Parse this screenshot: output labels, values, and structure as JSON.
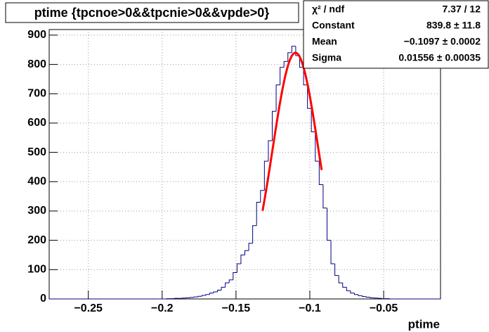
{
  "chart_data": {
    "type": "histogram",
    "title": "ptime {tpcnoe>0&&tpcnie>0&&vpde>0}",
    "x_label": "ptime",
    "color": "#000080",
    "fit_color": "#ff0000",
    "xlim": [
      -0.2765,
      -0.0115
    ],
    "ylim": [
      0,
      919
    ],
    "grid": true,
    "xticks": [
      {
        "value": -0.25,
        "label": "−0.25"
      },
      {
        "value": -0.2,
        "label": "−0.2"
      },
      {
        "value": -0.15,
        "label": "−0.15"
      },
      {
        "value": -0.1,
        "label": "−0.1"
      },
      {
        "value": -0.05,
        "label": "−0.05"
      }
    ],
    "yticks": [
      0,
      100,
      200,
      300,
      400,
      500,
      600,
      700,
      800,
      900
    ],
    "bins": [
      -0.2765,
      -0.27385,
      -0.2712,
      -0.26855,
      -0.2659,
      -0.26325,
      -0.2606,
      -0.25795,
      -0.2553,
      -0.25265,
      -0.25,
      -0.24735,
      -0.2447,
      -0.24205,
      -0.2394,
      -0.23675,
      -0.2341,
      -0.23145,
      -0.2288,
      -0.22615,
      -0.2235,
      -0.22085,
      -0.2182,
      -0.21555,
      -0.2129,
      -0.21025,
      -0.2076,
      -0.20495,
      -0.2023,
      -0.19965,
      -0.197,
      -0.19435,
      -0.1917,
      -0.18905,
      -0.1864,
      -0.18375,
      -0.1811,
      -0.17845,
      -0.1758,
      -0.17315,
      -0.1705,
      -0.16785,
      -0.1652,
      -0.16255,
      -0.1599,
      -0.15725,
      -0.1546,
      -0.15195,
      -0.1493,
      -0.14665,
      -0.144,
      -0.14135,
      -0.1387,
      -0.13605,
      -0.1334,
      -0.13075,
      -0.1281,
      -0.12545,
      -0.1228,
      -0.12015,
      -0.1175,
      -0.11485,
      -0.1122,
      -0.10955,
      -0.1069,
      -0.10425,
      -0.1016,
      -0.09895,
      -0.0963,
      -0.09365,
      -0.091,
      -0.08835,
      -0.0857,
      -0.08305,
      -0.0804,
      -0.07775,
      -0.0751,
      -0.07245,
      -0.0698,
      -0.06715,
      -0.0645,
      -0.06185,
      -0.0592,
      -0.05655,
      -0.0539,
      -0.05125,
      -0.0486,
      -0.04595,
      -0.0433,
      -0.04065,
      -0.038,
      -0.03535,
      -0.0327,
      -0.03005,
      -0.0274,
      -0.02475,
      -0.0221,
      -0.01945,
      -0.0168,
      -0.01415,
      -0.0115
    ],
    "values": [
      0,
      0,
      0,
      0,
      0,
      0,
      0,
      0,
      0,
      0,
      0,
      0,
      0,
      0,
      0,
      0,
      0,
      0,
      0,
      0,
      0,
      0,
      0,
      0,
      0,
      0,
      0,
      0,
      0,
      0,
      1,
      1,
      2,
      2,
      3,
      4,
      5,
      7,
      9,
      12,
      15,
      20,
      24,
      30,
      40,
      55,
      65,
      90,
      120,
      150,
      165,
      190,
      250,
      330,
      370,
      470,
      540,
      640,
      730,
      790,
      810,
      840,
      862,
      830,
      790,
      730,
      650,
      570,
      470,
      390,
      310,
      200,
      120,
      80,
      55,
      40,
      28,
      20,
      15,
      11,
      8,
      6,
      4,
      3,
      2,
      1,
      1,
      0,
      0,
      0,
      0,
      0,
      0,
      0,
      0,
      0,
      0,
      0,
      0,
      0
    ],
    "fit": {
      "constant": 839.8,
      "mean": -0.1097,
      "sigma": 0.01556,
      "range": [
        -0.132,
        -0.092
      ]
    },
    "stats": [
      {
        "name": "χ² / ndf",
        "value": "7.37 / 12"
      },
      {
        "name": "Constant",
        "value": "839.8 ± 11.8"
      },
      {
        "name": "Mean",
        "value": "−0.1097 ± 0.0002"
      },
      {
        "name": "Sigma",
        "value": "0.01556 ± 0.00035"
      }
    ]
  }
}
